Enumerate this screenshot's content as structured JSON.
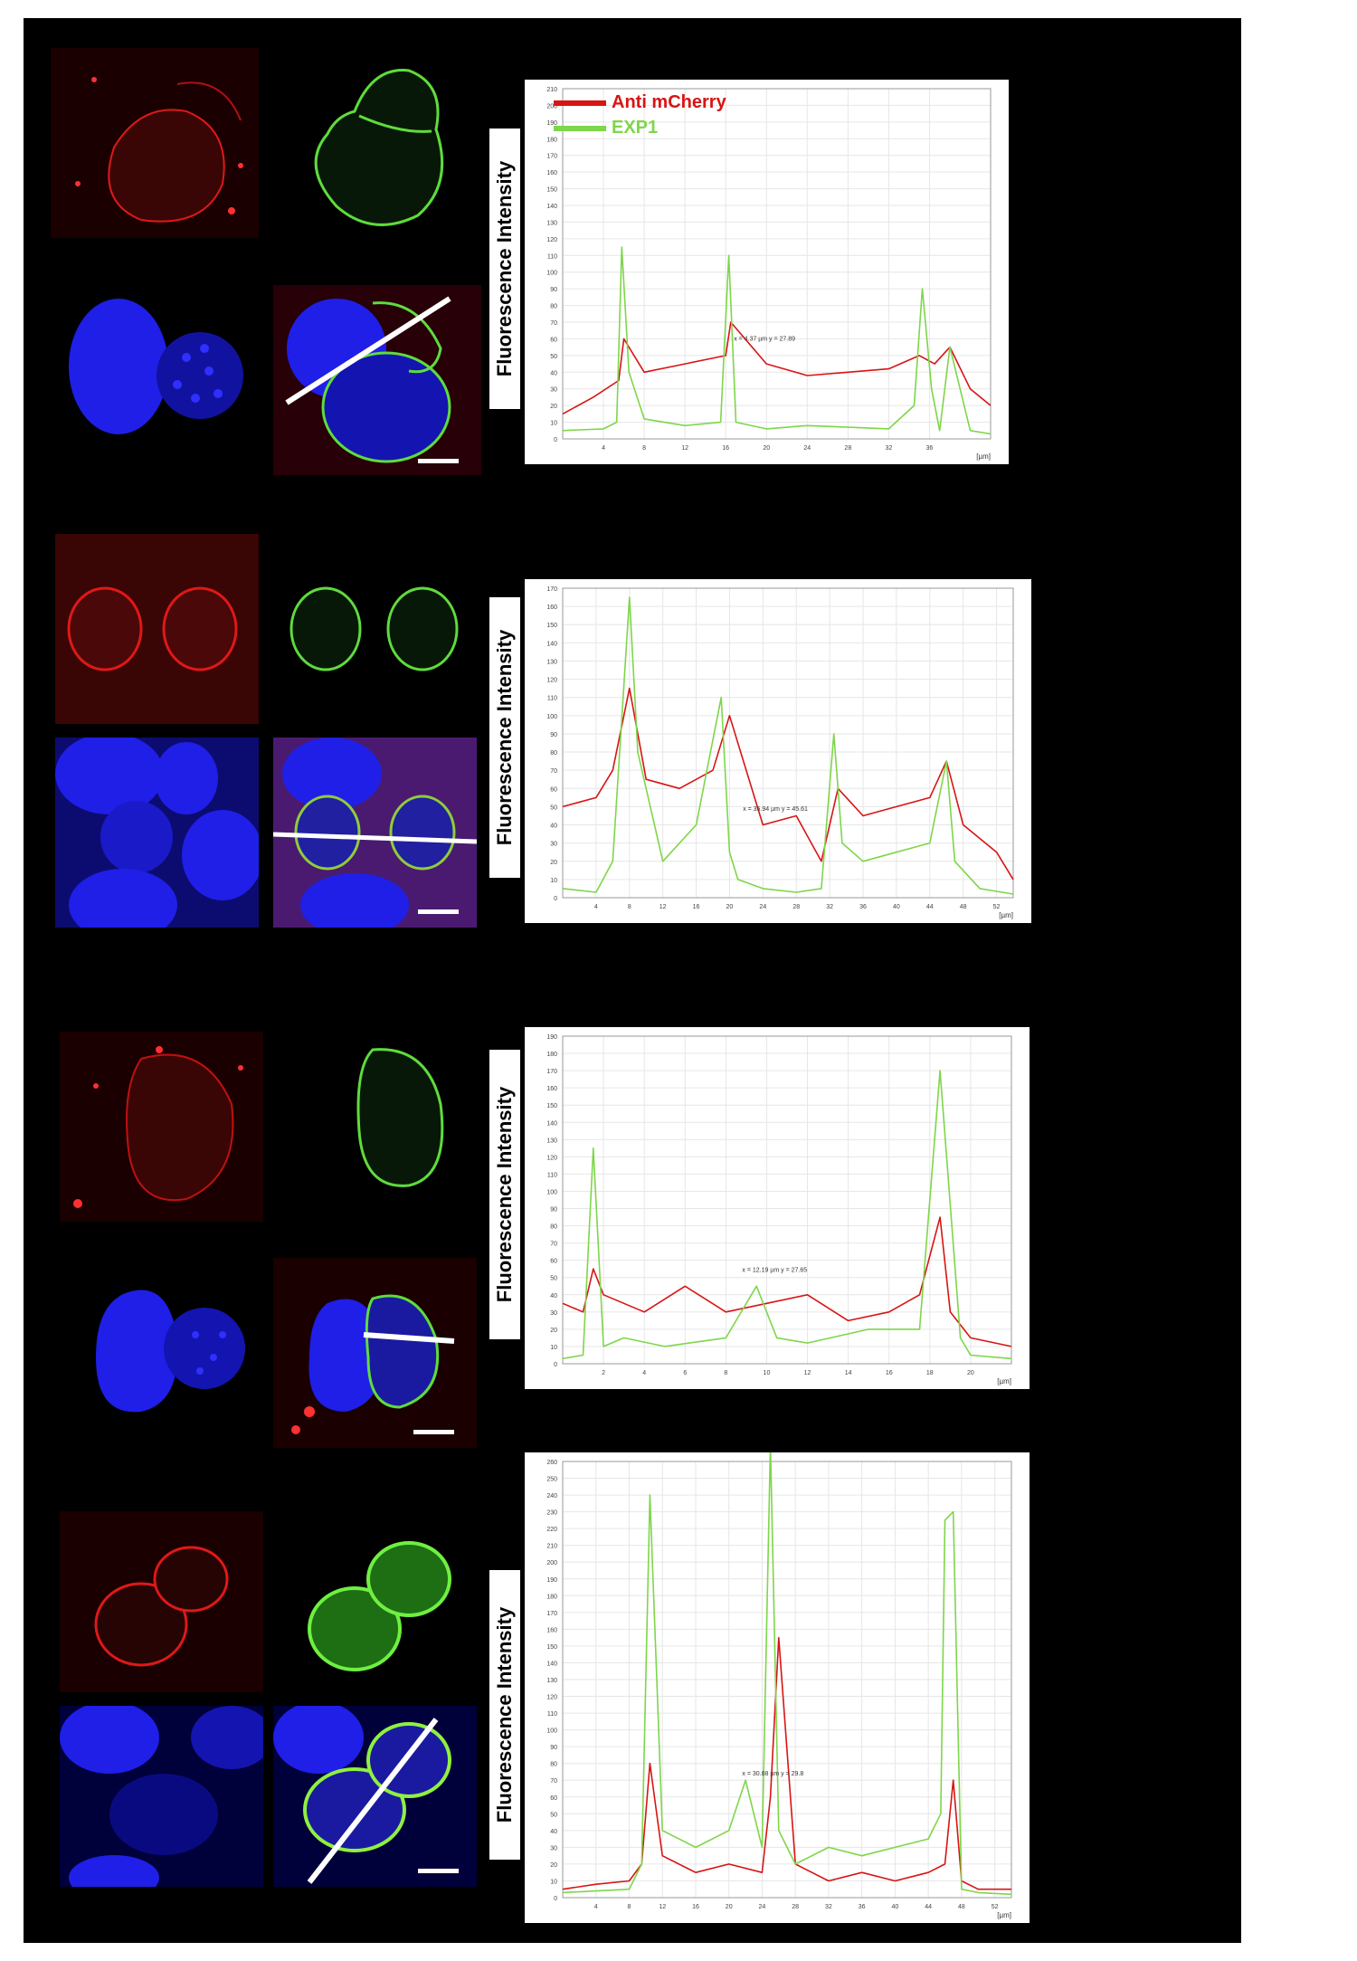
{
  "colors": {
    "red": "#e01818",
    "green": "#5fdc3c",
    "nucleus": "#1f1fe8",
    "background": "#000000"
  },
  "y_label": "Fluorescence Intensity",
  "legend": [
    {
      "label": "Anti mCherry",
      "color": "#d81414"
    },
    {
      "label": "EXP1",
      "color": "#7ed64a"
    }
  ],
  "charts": [
    {
      "unit": "[µm]",
      "x_ticks": [
        "4",
        "8",
        "12",
        "16",
        "20",
        "24",
        "28",
        "32",
        "36"
      ],
      "x_max": 42,
      "y_max": 210,
      "y_step": 10,
      "marker": "x = 4.37 µm  y = 27.89",
      "series": [
        {
          "name": "Anti mCherry",
          "x": [
            0,
            3,
            5.5,
            6,
            8,
            12,
            16,
            16.5,
            20,
            24,
            28,
            32,
            35,
            36.5,
            38,
            40,
            42
          ],
          "values": [
            15,
            25,
            35,
            60,
            40,
            45,
            50,
            70,
            45,
            38,
            40,
            42,
            50,
            45,
            55,
            30,
            20
          ]
        },
        {
          "name": "EXP1",
          "x": [
            0,
            4,
            5.3,
            5.8,
            6.5,
            8,
            12,
            15.5,
            16.3,
            17,
            20,
            24,
            28,
            32,
            34.5,
            35.3,
            36.2,
            37,
            38,
            40,
            42
          ],
          "values": [
            5,
            6,
            10,
            115,
            40,
            12,
            8,
            10,
            110,
            10,
            6,
            8,
            7,
            6,
            20,
            90,
            30,
            5,
            55,
            5,
            3
          ]
        }
      ]
    },
    {
      "unit": "[µm]",
      "x_ticks": [
        "4",
        "8",
        "12",
        "16",
        "20",
        "24",
        "28",
        "32",
        "36",
        "40",
        "44",
        "48",
        "52"
      ],
      "x_max": 54,
      "y_max": 170,
      "y_step": 10,
      "marker": "x = 35.94 µm  y = 45.61",
      "series": [
        {
          "name": "Anti mCherry",
          "x": [
            0,
            4,
            6,
            8,
            10,
            14,
            18,
            20,
            24,
            28,
            31,
            33,
            36,
            40,
            44,
            46,
            48,
            52,
            54
          ],
          "values": [
            50,
            55,
            70,
            115,
            65,
            60,
            70,
            100,
            40,
            45,
            20,
            60,
            45,
            50,
            55,
            75,
            40,
            25,
            10
          ]
        },
        {
          "name": "EXP1",
          "x": [
            0,
            4,
            6,
            8,
            9,
            10,
            12,
            16,
            19,
            20,
            21,
            24,
            28,
            31,
            32.5,
            33.5,
            36,
            40,
            44,
            46,
            47,
            50,
            54
          ],
          "values": [
            5,
            3,
            20,
            165,
            80,
            60,
            20,
            40,
            110,
            25,
            10,
            5,
            3,
            5,
            90,
            30,
            20,
            25,
            30,
            75,
            20,
            5,
            2
          ]
        }
      ]
    },
    {
      "unit": "[µm]",
      "x_ticks": [
        "2",
        "4",
        "6",
        "8",
        "10",
        "12",
        "14",
        "16",
        "18",
        "20"
      ],
      "x_max": 22,
      "y_max": 190,
      "y_step": 10,
      "marker": "x = 12.19 µm  y = 27.65",
      "series": [
        {
          "name": "Anti mCherry",
          "x": [
            0,
            1,
            1.5,
            2,
            4,
            6,
            8,
            10,
            12,
            14,
            16,
            17.5,
            18.5,
            19,
            20,
            22
          ],
          "values": [
            35,
            30,
            55,
            40,
            30,
            45,
            30,
            35,
            40,
            25,
            30,
            40,
            85,
            30,
            15,
            10
          ]
        },
        {
          "name": "EXP1",
          "x": [
            0,
            1,
            1.5,
            2,
            3,
            5,
            8,
            9.5,
            10.5,
            12,
            15,
            17.5,
            18.5,
            19.5,
            20,
            22
          ],
          "values": [
            3,
            5,
            125,
            10,
            15,
            10,
            15,
            45,
            15,
            12,
            20,
            20,
            170,
            15,
            5,
            3
          ]
        }
      ]
    },
    {
      "unit": "[µm]",
      "x_ticks": [
        "4",
        "8",
        "12",
        "16",
        "20",
        "24",
        "28",
        "32",
        "36",
        "40",
        "44",
        "48",
        "52"
      ],
      "x_max": 54,
      "y_max": 260,
      "y_step": 10,
      "marker": "x = 30.88 µm  y = 29.8",
      "series": [
        {
          "name": "Anti mCherry",
          "x": [
            0,
            4,
            8,
            9.5,
            10.5,
            12,
            16,
            20,
            24,
            25,
            26,
            28,
            32,
            36,
            40,
            44,
            46,
            47,
            48,
            50,
            54
          ],
          "values": [
            5,
            8,
            10,
            20,
            80,
            25,
            15,
            20,
            15,
            60,
            155,
            20,
            10,
            15,
            10,
            15,
            20,
            70,
            10,
            5,
            5
          ]
        },
        {
          "name": "EXP1",
          "x": [
            0,
            4,
            8,
            9.5,
            10.5,
            12,
            16,
            20,
            22,
            24,
            25,
            26,
            28,
            32,
            36,
            40,
            44,
            45.5,
            46,
            47,
            48,
            50,
            54
          ],
          "values": [
            3,
            4,
            5,
            20,
            240,
            40,
            30,
            40,
            70,
            30,
            270,
            40,
            20,
            30,
            25,
            30,
            35,
            50,
            225,
            230,
            5,
            3,
            2
          ]
        }
      ]
    }
  ]
}
